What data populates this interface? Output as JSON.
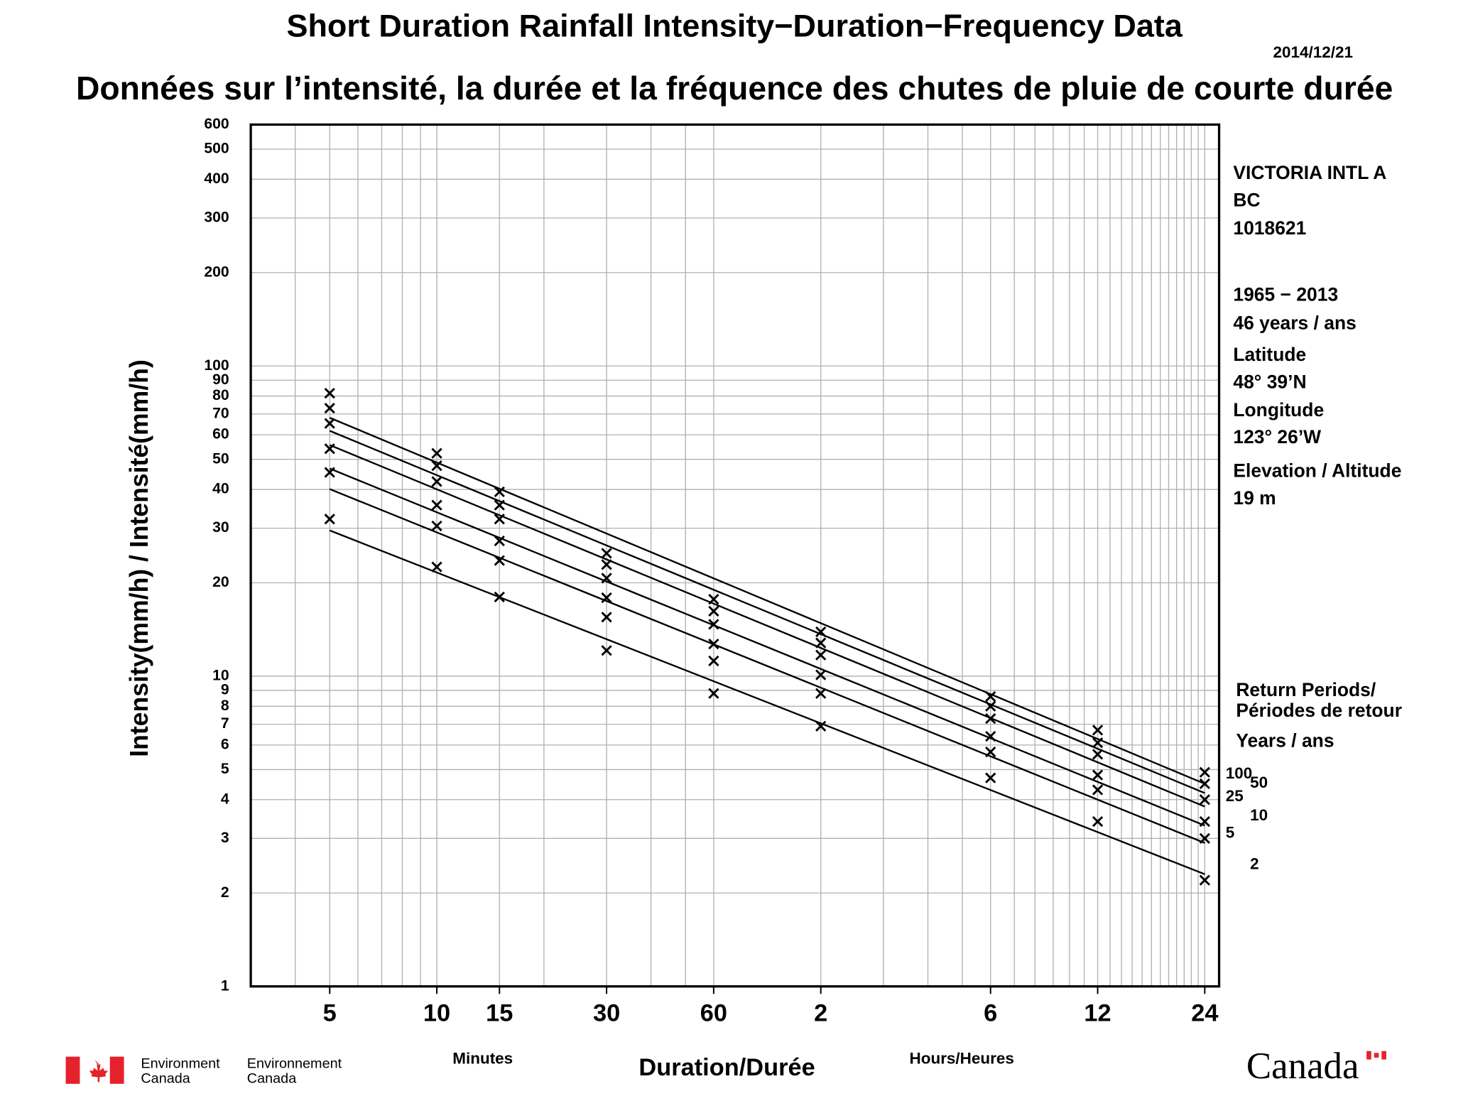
{
  "chart_data": {
    "type": "idf",
    "title": "Short Duration Rainfall Intensity−Duration−Frequency Data",
    "subtitle": "Données sur l’intensité, la durée et la fréquence des chutes de pluie de courte durée",
    "date": "2014/12/21",
    "y_label": "Intensity(mm/h) / Intensité(mm/h)",
    "x_label": "Duration/Durée",
    "x_unit_minutes": "Minutes",
    "x_unit_hours": "Hours/Heures",
    "station": [
      "VICTORIA INTL A",
      "BC",
      "1018621",
      "1965 − 2013",
      "46 years / ans",
      "Latitude",
      "48°  39’N",
      "Longitude",
      "123°  26’W",
      "Elevation / Altitude",
      "19 m"
    ],
    "legend_title": [
      "Return Periods/",
      "Périodes de retour",
      "Years / ans"
    ],
    "log_x": true,
    "log_y": true,
    "xlim": [
      3,
      1580
    ],
    "ylim": [
      1,
      600
    ],
    "xticks": [
      5,
      10,
      15,
      30,
      60,
      {
        "value": 120,
        "label": "2"
      },
      {
        "value": 360,
        "label": "6"
      },
      {
        "value": 720,
        "label": "12"
      },
      {
        "value": 1440,
        "label": "24"
      }
    ],
    "xgrid": [
      4,
      5,
      6,
      7,
      8,
      9,
      10,
      15,
      20,
      30,
      40,
      50,
      60,
      120,
      180,
      240,
      300,
      360,
      420,
      480,
      540,
      600,
      660,
      720,
      780,
      840,
      900,
      960,
      1020,
      1080,
      1140,
      1200,
      1260,
      1320,
      1380,
      1440
    ],
    "yticks": [
      1,
      2,
      3,
      4,
      5,
      6,
      7,
      8,
      9,
      10,
      20,
      30,
      40,
      50,
      60,
      70,
      80,
      90,
      100,
      200,
      300,
      400,
      500,
      600
    ],
    "grid": true,
    "x": [
      5,
      10,
      15,
      30,
      60,
      120,
      360,
      720,
      1440
    ],
    "fit_x": [
      5,
      1440
    ],
    "series": [
      {
        "name": "100",
        "color": "#000000",
        "values": [
          81.7,
          52.3,
          39.3,
          24.9,
          17.7,
          13.9,
          8.6,
          6.7,
          4.9
        ],
        "fit": [
          68.1,
          4.5
        ]
      },
      {
        "name": "50",
        "color": "#000000",
        "values": [
          73.1,
          47.7,
          35.6,
          22.9,
          16.2,
          12.8,
          8.0,
          6.1,
          4.5
        ],
        "fit": [
          61.8,
          4.2
        ]
      },
      {
        "name": "25",
        "color": "#000000",
        "values": [
          65.3,
          42.4,
          32.1,
          20.7,
          14.7,
          11.7,
          7.3,
          5.6,
          4.0
        ],
        "fit": [
          55.6,
          3.8
        ]
      },
      {
        "name": "10",
        "color": "#000000",
        "values": [
          54.1,
          35.6,
          27.3,
          17.9,
          12.7,
          10.1,
          6.4,
          4.8,
          3.4
        ],
        "fit": [
          46.7,
          3.3
        ]
      },
      {
        "name": "5",
        "color": "#000000",
        "values": [
          45.4,
          30.5,
          23.6,
          15.5,
          11.2,
          8.8,
          5.7,
          4.3,
          3.0
        ],
        "fit": [
          40.1,
          2.9
        ]
      },
      {
        "name": "2",
        "color": "#000000",
        "values": [
          32.1,
          22.5,
          18.0,
          12.1,
          8.8,
          6.9,
          4.7,
          3.4,
          2.2
        ],
        "fit": [
          29.5,
          2.3
        ]
      }
    ],
    "footer": {
      "dept_en": [
        "Environment",
        "Canada"
      ],
      "dept_fr": [
        "Environnement",
        "Canada"
      ],
      "wordmark": "Canada"
    }
  }
}
